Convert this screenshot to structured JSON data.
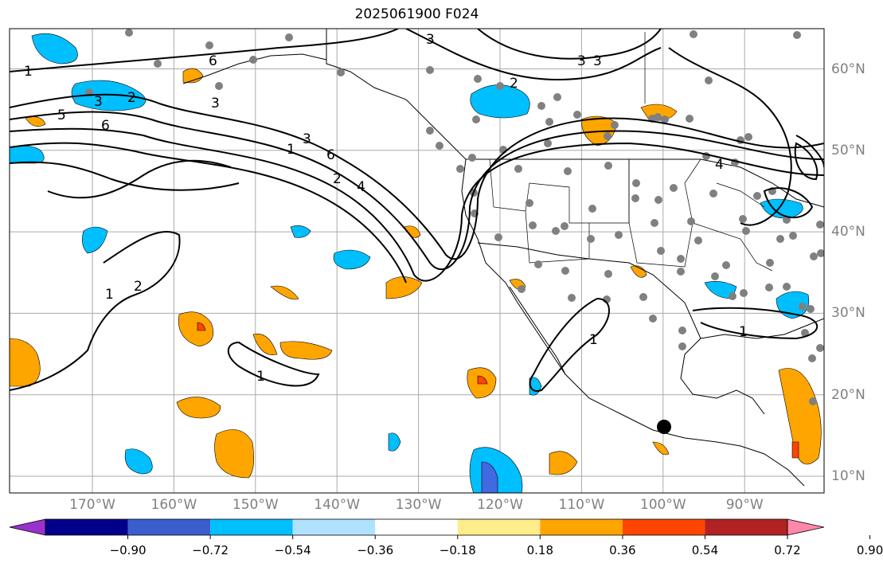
{
  "title": "2025061900 F024",
  "lat_labels": [
    {
      "label": "60°N",
      "deg": 60
    },
    {
      "label": "50°N",
      "deg": 50
    },
    {
      "label": "40°N",
      "deg": 40
    },
    {
      "label": "30°N",
      "deg": 30
    },
    {
      "label": "20°N",
      "deg": 20
    },
    {
      "label": "10°N",
      "deg": 10
    }
  ],
  "lon_labels": [
    {
      "label": "170°W",
      "deg": -170
    },
    {
      "label": "160°W",
      "deg": -160
    },
    {
      "label": "150°W",
      "deg": -150
    },
    {
      "label": "140°W",
      "deg": -140
    },
    {
      "label": "130°W",
      "deg": -130
    },
    {
      "label": "120°W",
      "deg": -120
    },
    {
      "label": "110°W",
      "deg": -110
    },
    {
      "label": "100°W",
      "deg": -100
    },
    {
      "label": "90°W",
      "deg": -90
    }
  ],
  "colorbar": {
    "ticks": [
      "−0.90",
      "−0.72",
      "−0.54",
      "−0.36",
      "−0.18",
      "0.18",
      "0.36",
      "0.54",
      "0.72",
      "0.90"
    ],
    "colors": [
      "#9932cc",
      "#00008b",
      "#3a5fcd",
      "#00bfff",
      "#b0e2ff",
      "#ffffff",
      "#ffec8b",
      "#ffa500",
      "#ff4500",
      "#b22222",
      "#ff88aa"
    ]
  },
  "contour_labels": [
    "1",
    "2",
    "3",
    "4",
    "5",
    "6"
  ],
  "colors": {
    "gridline": "#aaaaaa",
    "coastline": "#000000",
    "label_gray": "#808080",
    "station_dot": "#808080",
    "negative": "#00bfff",
    "positive": "#ffa500"
  }
}
